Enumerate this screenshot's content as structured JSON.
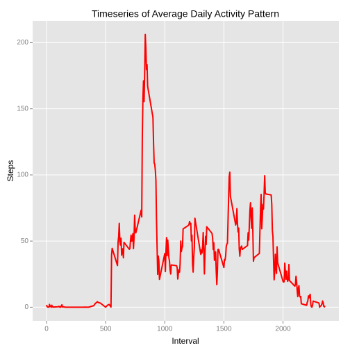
{
  "chart_data": {
    "type": "line",
    "title": "Timeseries of Average Daily Activity Pattern",
    "x_label": "Interval",
    "y_label": "Steps",
    "x": [
      0,
      5,
      10,
      15,
      20,
      25,
      30,
      35,
      40,
      45,
      50,
      55,
      100,
      105,
      110,
      115,
      120,
      125,
      130,
      135,
      140,
      145,
      150,
      155,
      200,
      230,
      255,
      300,
      330,
      355,
      400,
      410,
      430,
      440,
      455,
      500,
      515,
      530,
      545,
      550,
      555,
      600,
      605,
      610,
      615,
      620,
      625,
      630,
      635,
      640,
      645,
      650,
      655,
      700,
      705,
      710,
      715,
      720,
      725,
      730,
      735,
      740,
      745,
      750,
      755,
      800,
      805,
      810,
      815,
      820,
      825,
      830,
      835,
      840,
      845,
      850,
      855,
      900,
      905,
      910,
      915,
      920,
      925,
      930,
      935,
      940,
      945,
      950,
      955,
      1000,
      1005,
      1010,
      1015,
      1020,
      1025,
      1030,
      1035,
      1040,
      1045,
      1050,
      1055,
      1100,
      1105,
      1110,
      1115,
      1120,
      1125,
      1130,
      1135,
      1140,
      1145,
      1150,
      1155,
      1200,
      1205,
      1210,
      1215,
      1220,
      1225,
      1230,
      1235,
      1240,
      1245,
      1250,
      1255,
      1300,
      1305,
      1310,
      1315,
      1320,
      1325,
      1330,
      1335,
      1340,
      1345,
      1350,
      1355,
      1400,
      1405,
      1410,
      1415,
      1420,
      1425,
      1430,
      1435,
      1440,
      1445,
      1450,
      1455,
      1500,
      1505,
      1510,
      1515,
      1520,
      1525,
      1530,
      1535,
      1540,
      1545,
      1550,
      1555,
      1600,
      1605,
      1610,
      1615,
      1620,
      1625,
      1630,
      1635,
      1640,
      1645,
      1650,
      1655,
      1700,
      1705,
      1710,
      1715,
      1720,
      1725,
      1730,
      1735,
      1740,
      1745,
      1750,
      1755,
      1800,
      1805,
      1810,
      1815,
      1820,
      1825,
      1830,
      1835,
      1840,
      1845,
      1850,
      1855,
      1900,
      1905,
      1910,
      1915,
      1920,
      1925,
      1930,
      1935,
      1940,
      1945,
      1950,
      1955,
      2000,
      2005,
      2010,
      2015,
      2020,
      2025,
      2030,
      2035,
      2040,
      2045,
      2050,
      2055,
      2100,
      2105,
      2110,
      2115,
      2120,
      2125,
      2130,
      2135,
      2140,
      2145,
      2150,
      2155,
      2200,
      2205,
      2210,
      2215,
      2220,
      2225,
      2230,
      2235,
      2240,
      2245,
      2250,
      2255,
      2300,
      2305,
      2310,
      2315,
      2320,
      2325,
      2330,
      2335,
      2340,
      2345,
      2350,
      2355
    ],
    "series": [
      {
        "name": "Steps",
        "color": "#ff0000",
        "values": [
          1.72,
          0.34,
          0.13,
          0.15,
          0.08,
          2.09,
          0.53,
          0.87,
          0,
          1.47,
          0.3,
          0.13,
          0.32,
          0.68,
          0.15,
          0.34,
          0,
          1.11,
          1.83,
          0.17,
          0.17,
          0.38,
          0.26,
          0,
          0,
          0,
          0,
          0,
          0.09,
          0,
          1.18,
          2.6,
          4.11,
          3.49,
          3.11,
          0,
          1.5,
          2.09,
          0.13,
          39.45,
          44.49,
          31.49,
          49.26,
          53.77,
          63.45,
          49.96,
          47.08,
          52.15,
          39.34,
          44.02,
          44.17,
          37.36,
          49.04,
          43.81,
          44.38,
          50.51,
          54.51,
          49.92,
          50.98,
          55.68,
          44.32,
          52.26,
          69.55,
          57.85,
          56.15,
          73.38,
          68.21,
          129.43,
          157.53,
          171.15,
          155.4,
          177.3,
          206.17,
          195.92,
          179.57,
          183.4,
          167.02,
          143.45,
          124.04,
          109.11,
          108.11,
          103.72,
          95.96,
          66.21,
          45.23,
          24.79,
          38.75,
          34.98,
          21.06,
          40.57,
          26.98,
          42.42,
          52.66,
          38.92,
          50.79,
          44.28,
          37.42,
          34.7,
          28.34,
          25.09,
          31.94,
          31.36,
          29.68,
          21.32,
          25.55,
          28.38,
          26.47,
          33.43,
          49.98,
          42.04,
          44.6,
          46.04,
          59.19,
          61.87,
          62.7,
          64.85,
          62.77,
          63.4,
          50.17,
          54.47,
          32.42,
          26.53,
          37.74,
          45.06,
          67.28,
          42.34,
          39.88,
          43.26,
          40.98,
          46.25,
          56.43,
          42.75,
          25.13,
          39.96,
          53.55,
          47.32,
          60.81,
          55.75,
          51.96,
          43.58,
          48.7,
          35.47,
          37.55,
          41.85,
          27.51,
          17.11,
          26.08,
          43.62,
          43.77,
          30.02,
          36.08,
          35.49,
          38.85,
          45.96,
          47.75,
          48.13,
          65.32,
          82.91,
          98.66,
          102.11,
          83.96,
          62.13,
          64.13,
          74.55,
          63.17,
          56.91,
          59.77,
          43.87,
          38.57,
          44.66,
          45.45,
          46.21,
          43.68,
          46.62,
          56.3,
          50.72,
          61.23,
          72.72,
          78.94,
          68.94,
          59.66,
          75.09,
          56.51,
          34.77,
          37.45,
          40.68,
          58.02,
          74.7,
          85.32,
          59.26,
          67.77,
          77.7,
          74.25,
          85.34,
          99.45,
          86.58,
          85.6,
          84.87,
          77.83,
          58.04,
          53.36,
          36.32,
          20.72,
          27.4,
          40.02,
          30.21,
          25.55,
          45.66,
          33.53,
          19.62,
          19.02,
          19.34,
          33.34,
          26.81,
          21.17,
          27.3,
          21.34,
          19.55,
          21.32,
          32.3,
          20.15,
          15.94,
          17.23,
          23.45,
          19.25,
          12.45,
          8.02,
          14.66,
          16.3,
          8.68,
          7.79,
          8.13,
          2.62,
          1.45,
          3.68,
          4.81,
          8.51,
          7.08,
          8.7,
          9.75,
          2.21,
          0.32,
          0.11,
          1.6,
          4.6,
          3.3,
          2.85,
          0,
          0.83,
          0.96,
          1.58,
          2.6,
          4.7,
          3.3,
          0.64,
          0.23,
          1.08
        ]
      }
    ],
    "xlim": [
      -117.75,
      2472.75
    ],
    "xticks": [
      0,
      500,
      1000,
      1500,
      2000
    ],
    "ylim": [
      -10.3,
      216.5
    ],
    "yticks": [
      0,
      50,
      100,
      150,
      200
    ],
    "grid": true
  }
}
